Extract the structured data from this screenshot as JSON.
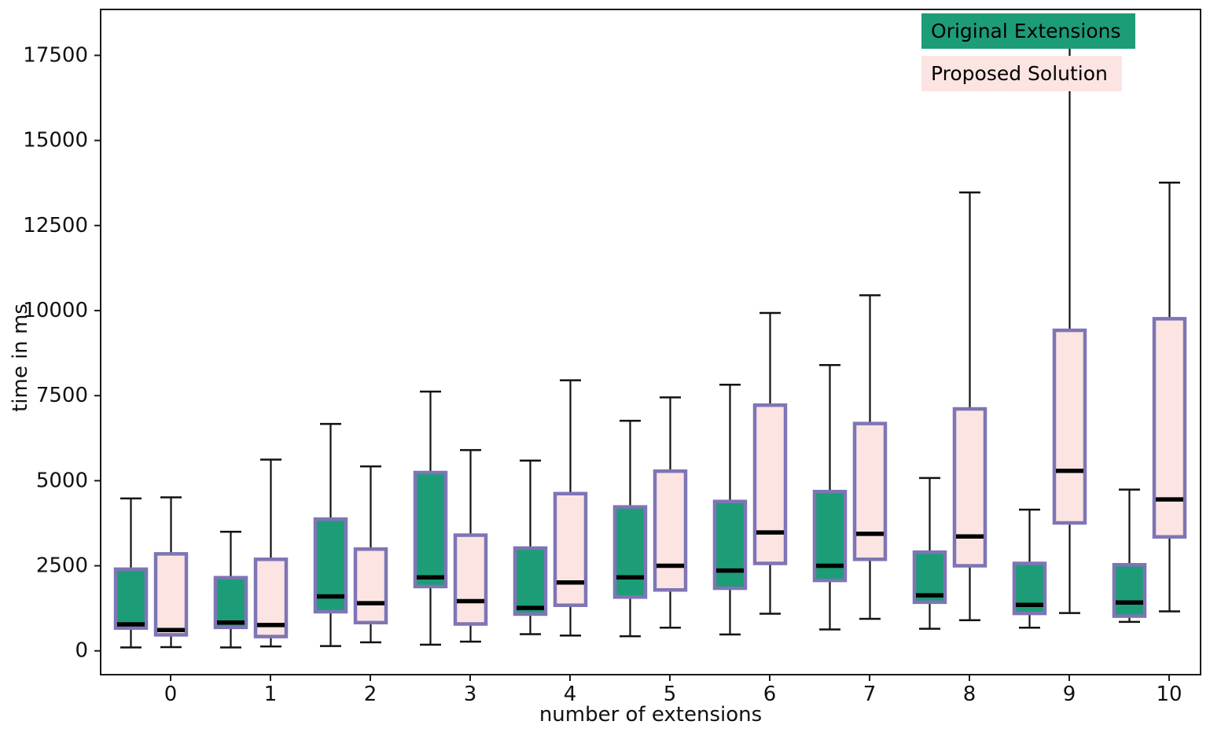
{
  "chart_data": {
    "type": "boxplot",
    "title": "",
    "xlabel": "number of extensions",
    "ylabel": "time in ms",
    "categories": [
      "0",
      "1",
      "2",
      "3",
      "4",
      "5",
      "6",
      "7",
      "8",
      "9",
      "10"
    ],
    "y_ticks": [
      0,
      2500,
      5000,
      7500,
      10000,
      12500,
      15000,
      17500
    ],
    "ylim": [
      -700,
      18850
    ],
    "grid": false,
    "legend_position": "upper right",
    "colors": {
      "original_fill": "#1d9c78",
      "proposed_fill": "#fce4e2",
      "box_edge": "#7e75b5",
      "median": "#000000",
      "whisker": "#111111",
      "spine": "#1a1a1a"
    },
    "legend": [
      {
        "label": "Original Extensions",
        "color": "#1d9c78"
      },
      {
        "label": "Proposed Solution",
        "color": "#fce4e2"
      }
    ],
    "series": [
      {
        "name": "Original Extensions",
        "key": "original",
        "boxes": [
          {
            "whislo": 100,
            "q1": 670,
            "med": 780,
            "q3": 2400,
            "whishi": 4480
          },
          {
            "whislo": 100,
            "q1": 690,
            "med": 830,
            "q3": 2150,
            "whishi": 3500
          },
          {
            "whislo": 140,
            "q1": 1150,
            "med": 1600,
            "q3": 3870,
            "whishi": 6670
          },
          {
            "whislo": 180,
            "q1": 1890,
            "med": 2160,
            "q3": 5240,
            "whishi": 7620
          },
          {
            "whislo": 490,
            "q1": 1080,
            "med": 1260,
            "q3": 3020,
            "whishi": 5590
          },
          {
            "whislo": 430,
            "q1": 1580,
            "med": 2160,
            "q3": 4230,
            "whishi": 6760
          },
          {
            "whislo": 480,
            "q1": 1840,
            "med": 2360,
            "q3": 4390,
            "whishi": 7820
          },
          {
            "whislo": 630,
            "q1": 2070,
            "med": 2500,
            "q3": 4680,
            "whishi": 8400
          },
          {
            "whislo": 650,
            "q1": 1430,
            "med": 1630,
            "q3": 2900,
            "whishi": 5080
          },
          {
            "whislo": 680,
            "q1": 1100,
            "med": 1350,
            "q3": 2570,
            "whishi": 4150
          },
          {
            "whislo": 850,
            "q1": 1020,
            "med": 1420,
            "q3": 2530,
            "whishi": 4740
          }
        ]
      },
      {
        "name": "Proposed Solution",
        "key": "proposed",
        "boxes": [
          {
            "whislo": 110,
            "q1": 470,
            "med": 610,
            "q3": 2850,
            "whishi": 4510
          },
          {
            "whislo": 130,
            "q1": 420,
            "med": 760,
            "q3": 2690,
            "whishi": 5620
          },
          {
            "whislo": 250,
            "q1": 830,
            "med": 1400,
            "q3": 2990,
            "whishi": 5420
          },
          {
            "whislo": 270,
            "q1": 790,
            "med": 1460,
            "q3": 3400,
            "whishi": 5900
          },
          {
            "whislo": 450,
            "q1": 1340,
            "med": 2010,
            "q3": 4620,
            "whishi": 7950
          },
          {
            "whislo": 680,
            "q1": 1790,
            "med": 2500,
            "q3": 5280,
            "whishi": 7450
          },
          {
            "whislo": 1090,
            "q1": 2570,
            "med": 3480,
            "q3": 7220,
            "whishi": 9930
          },
          {
            "whislo": 940,
            "q1": 2690,
            "med": 3440,
            "q3": 6680,
            "whishi": 10450
          },
          {
            "whislo": 900,
            "q1": 2500,
            "med": 3360,
            "q3": 7110,
            "whishi": 13470
          },
          {
            "whislo": 1110,
            "q1": 3760,
            "med": 5290,
            "q3": 9420,
            "whishi": 18000
          },
          {
            "whislo": 1160,
            "q1": 3350,
            "med": 4450,
            "q3": 9760,
            "whishi": 13760
          }
        ]
      }
    ]
  }
}
